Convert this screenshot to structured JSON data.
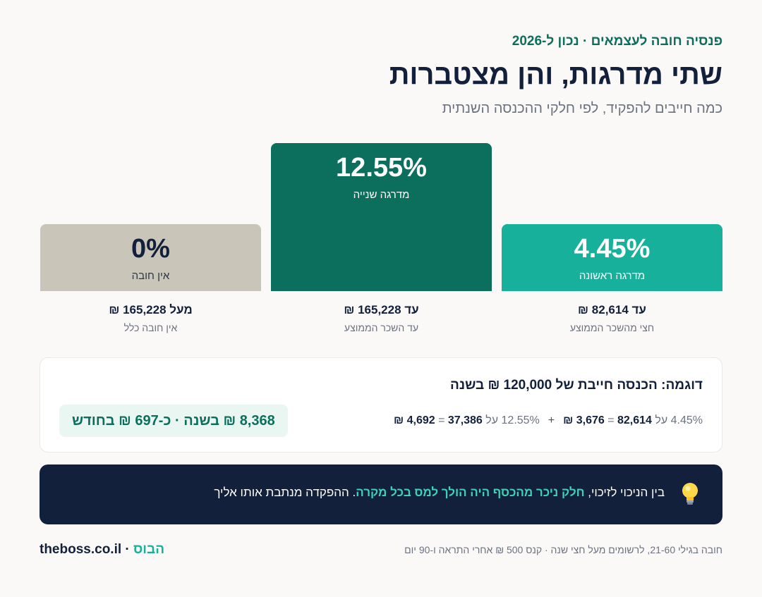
{
  "header": {
    "eyebrow": "פנסיה חובה לעצמאים · נכון ל-2026",
    "title": "שתי מדרגות, והן מצטברות",
    "subtitle": "כמה חייבים להפקיד, לפי חלקי ההכנסה השנתית"
  },
  "tiers": [
    {
      "rate": "4.45%",
      "name": "מדרגה ראשונה",
      "bound": "עד 82,614 ₪",
      "desc": "חצי מהשכר הממוצע",
      "color": "#17b19b"
    },
    {
      "rate": "12.55%",
      "name": "מדרגה שנייה",
      "bound": "עד 165,228 ₪",
      "desc": "עד השכר הממוצע",
      "color": "#0c6e5c"
    },
    {
      "rate": "0%",
      "name": "אין חובה",
      "bound": "מעל 165,228 ₪",
      "desc": "אין חובה כלל",
      "color": "#c9c5b9"
    }
  ],
  "example": {
    "title": "דוגמה: הכנסה חייבת של 120,000 ₪ בשנה",
    "part1": {
      "rate": "4.45% על ",
      "base": "82,614",
      "eq": " = ",
      "result": "3,676 ₪"
    },
    "plus": "+",
    "part2": {
      "rate": "12.55% על ",
      "base": "37,386",
      "eq": " = ",
      "result": "4,692 ₪"
    },
    "total": "8,368 ₪ בשנה · כ-697 ₪ בחודש"
  },
  "tip": {
    "icon": "lightbulb-icon",
    "lead": "בין הניכוי לזיכוי, ",
    "highlight": "חלק ניכר מהכסף היה הולך למס בכל מקרה",
    "tail": ". ההפקדה מנתבת אותו אליך"
  },
  "footer": {
    "note": "חובה בגילי 21-60, לרשומים מעל חצי שנה · קנס 500 ₪ אחרי התראה ו-90 יום",
    "brand_site": "theboss.co.il",
    "brand_sep": " · ",
    "brand_he": "הבוס"
  }
}
